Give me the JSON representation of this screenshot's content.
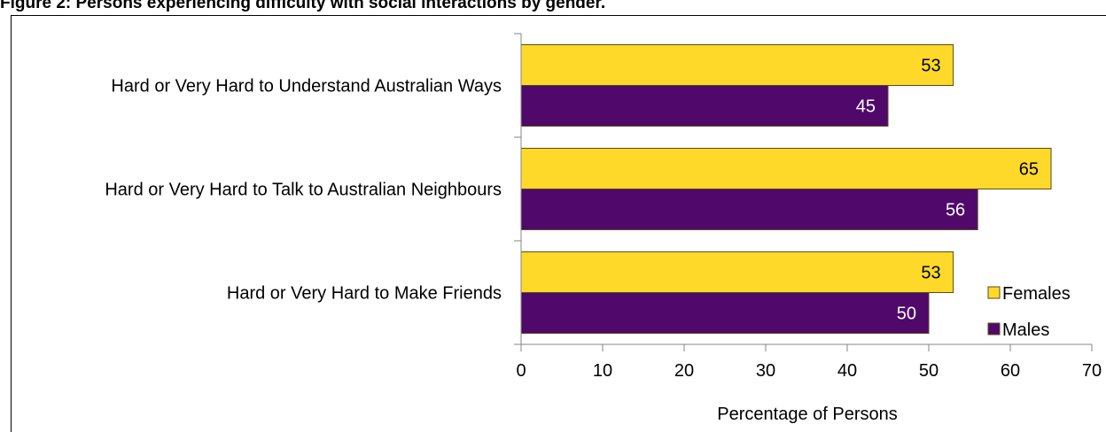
{
  "title": "Figure 2: Persons experiencing difficulty with social interactions by gender.",
  "chart_data": {
    "type": "bar",
    "orientation": "horizontal",
    "categories": [
      "Hard or Very Hard to Understand Australian Ways",
      "Hard or Very Hard to Talk to Australian Neighbours",
      "Hard or Very Hard to Make Friends"
    ],
    "series": [
      {
        "name": "Females",
        "color": "#FFD92A",
        "values": [
          53,
          65,
          53
        ],
        "labels": [
          "53",
          "65",
          "53"
        ],
        "label_color": "#000000"
      },
      {
        "name": "Males",
        "color": "#50086B",
        "values": [
          45,
          56,
          50
        ],
        "labels": [
          "45",
          "56",
          "50"
        ],
        "label_color": "#FFFFFF"
      }
    ],
    "xlabel": "Percentage of Persons",
    "xlim": [
      0,
      70
    ],
    "xticks": [
      "0",
      "10",
      "20",
      "30",
      "40",
      "50",
      "60",
      "70"
    ],
    "grid": false,
    "legend": "bottom-right"
  }
}
